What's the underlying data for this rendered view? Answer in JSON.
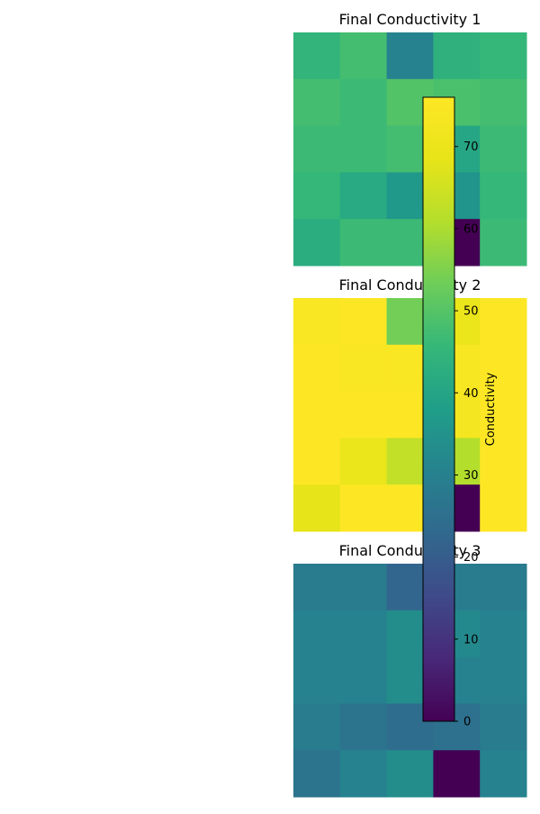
{
  "chart_data": {
    "type": "heatmap",
    "colormap": "viridis",
    "vmin": 0,
    "vmax": 75,
    "panels": [
      {
        "title": "Final Conductivity 1",
        "grid": [
          [
            44,
            47,
            30,
            43,
            45
          ],
          [
            47,
            46,
            49,
            48,
            47
          ],
          [
            46,
            46,
            47,
            40,
            46
          ],
          [
            45,
            41,
            36,
            35,
            45
          ],
          [
            42,
            46,
            46,
            0,
            46
          ]
        ]
      },
      {
        "title": "Final Conductivity 2",
        "grid": [
          [
            74,
            75,
            53,
            69,
            76
          ],
          [
            76,
            74,
            74,
            73,
            76
          ],
          [
            75,
            76,
            75,
            72,
            76
          ],
          [
            77,
            69,
            62,
            60,
            76
          ],
          [
            68,
            76,
            75,
            0,
            76
          ]
        ]
      },
      {
        "title": "Final Conductivity 3",
        "grid": [
          [
            28,
            28,
            22,
            28,
            28
          ],
          [
            30,
            30,
            33,
            32,
            30
          ],
          [
            30,
            30,
            33,
            30,
            30
          ],
          [
            28,
            26,
            24,
            25,
            28
          ],
          [
            26,
            30,
            33,
            0,
            30
          ]
        ]
      }
    ],
    "colorbar": {
      "label": "Conductivity",
      "ticks": [
        0,
        10,
        20,
        30,
        40,
        50,
        60,
        70
      ],
      "range": [
        0,
        76
      ]
    }
  }
}
